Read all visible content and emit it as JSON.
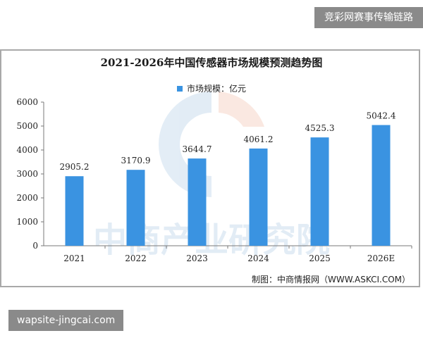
{
  "top_badge": "竞彩网赛事传输链路",
  "bottom_badge": "wapsite-jingcai.com",
  "watermark": "中商产业研究院",
  "source_note": "制图：中商情报网（WWW.ASKCI.COM）",
  "colors": {
    "bar": "#3a93e1",
    "axis": "#7a7a7a"
  },
  "chart_data": {
    "type": "bar",
    "title": "2021-2026年中国传感器市场规模预测趋势图",
    "legend_position": "top",
    "xlabel": "",
    "ylabel": "",
    "ylim": [
      0,
      6000
    ],
    "yticks": [
      0,
      1000,
      2000,
      3000,
      4000,
      5000,
      6000
    ],
    "categories": [
      "2021",
      "2022",
      "2023",
      "2024",
      "2025",
      "2026E"
    ],
    "series": [
      {
        "name": "市场规模：亿元",
        "values": [
          2905.2,
          3170.9,
          3644.7,
          4061.2,
          4525.3,
          5042.4
        ],
        "labels": [
          "2905.2",
          "3170.9",
          "3644.7",
          "4061.2",
          "4525.3",
          "5042.4"
        ]
      }
    ],
    "grid": false
  }
}
